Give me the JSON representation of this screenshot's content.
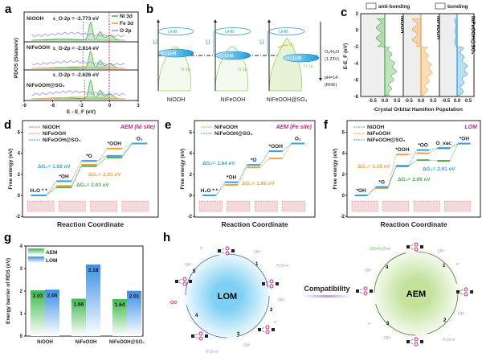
{
  "panel_labels": [
    "a",
    "b",
    "c",
    "d",
    "e",
    "f",
    "g",
    "h"
  ],
  "colors": {
    "NiOOH": "#4db04a",
    "NiFeOOH": "#f0a040",
    "NiFeOOH@SO4": "#3aa0e0",
    "O2p": "#9c8cf0",
    "AEM": "#5cc05a",
    "LOM": "#4a9fe8",
    "magenta": "#d0208a",
    "purple": "#b08ae8"
  },
  "chart_data": [
    {
      "panel": "a",
      "type": "line",
      "xlabel": "E - E_F (eV)",
      "ylabel": "PDOS (State/eV)",
      "xlim": [
        -9,
        3
      ],
      "xticks": [
        "-9",
        "-6",
        "-3",
        "0",
        "3"
      ],
      "legend": [
        "Ni 3d",
        "Fe 3d",
        "O 2p"
      ],
      "subplots": [
        {
          "name": "NiOOH",
          "center_label": "ε_O-2p = -2.773 eV",
          "o2p_center": -2.773
        },
        {
          "name": "NiFeOOH",
          "center_label": "ε_O-2p = -2.814 eV",
          "o2p_center": -2.814
        },
        {
          "name": "NiFeOOH@SO₄",
          "center_label": "ε_O-2p = -2.626 eV",
          "o2p_center": -2.626
        }
      ]
    },
    {
      "panel": "c",
      "type": "area",
      "xlabel": "-Crystal Orbital Hamilton Population",
      "ylabel": "E-E_F (eV)",
      "ylim": [
        -8,
        2
      ],
      "yticks": [
        "2",
        "0",
        "-2",
        "-4",
        "-6",
        "-8"
      ],
      "xlim": [
        -0.75,
        0.75
      ],
      "xticks": [
        "-0.5",
        "0.0",
        "0.5"
      ],
      "legend": [
        "anti-bonding",
        "bonding"
      ],
      "subplots": [
        "NiOOH",
        "NiFeOOH",
        "NiFeOOH@SO₄"
      ]
    },
    {
      "panel": "d",
      "type": "line",
      "title": "AEM (Ni site)",
      "xlabel": "Reaction Coordinate",
      "ylabel": "Free energy (eV)",
      "ylim": [
        -2,
        7
      ],
      "yticks": [
        "-2",
        "0",
        "2",
        "4",
        "6"
      ],
      "steps": [
        "H₂O * *",
        "*OH",
        "*O",
        "*OOH",
        "O₂"
      ],
      "series": [
        {
          "name": "NiOOH",
          "values": [
            0,
            0.75,
            2.78,
            3.6,
            4.92
          ]
        },
        {
          "name": "NiFeOOH",
          "values": [
            0,
            0.9,
            2.91,
            4.45,
            4.92
          ]
        },
        {
          "name": "NiFeOOH@SO₄",
          "values": [
            0,
            1.35,
            3.27,
            3.75,
            4.92
          ]
        }
      ],
      "annotations": [
        {
          "text": "ΔG₂= 1.92 eV",
          "series": "NiFeOOH@SO₄"
        },
        {
          "text": "ΔG₂= 2.01 eV",
          "series": "NiFeOOH"
        },
        {
          "text": "ΔG₂= 2.03 eV",
          "series": "NiOOH"
        }
      ]
    },
    {
      "panel": "e",
      "type": "line",
      "title": "AEM (Fe site)",
      "xlabel": "Reaction Coordinate",
      "ylabel": "Free energy (eV)",
      "ylim": [
        -2,
        7
      ],
      "yticks": [
        "-2",
        "0",
        "2",
        "4",
        "6"
      ],
      "steps": [
        "H₂O * *",
        "*OH",
        "*O",
        "*OOH",
        "O₂"
      ],
      "series": [
        {
          "name": "NiFeOOH",
          "values": [
            0,
            1.0,
            2.66,
            3.5,
            4.92
          ]
        },
        {
          "name": "NiFeOOH@SO₄",
          "values": [
            0,
            1.25,
            2.89,
            4.2,
            4.92
          ]
        }
      ],
      "annotations": [
        {
          "text": "ΔG₂= 1.64 eV",
          "series": "NiFeOOH@SO₄"
        },
        {
          "text": "ΔG₂= 1.66 eV",
          "series": "NiFeOOH"
        }
      ]
    },
    {
      "panel": "f",
      "type": "line",
      "title": "LOM",
      "xlabel": "Reaction Coordinate",
      "ylabel": "Free energy (eV)",
      "ylim": [
        -2,
        7
      ],
      "yticks": [
        "-2",
        "0",
        "2",
        "4",
        "6"
      ],
      "steps": [
        "*OH",
        "*O",
        "*OOH",
        "*OO",
        "O_vac",
        "*OH"
      ],
      "series": [
        {
          "name": "NiOOH",
          "values": [
            0,
            0.7,
            2.76,
            3.35,
            3.28,
            4.92
          ]
        },
        {
          "name": "NiFeOOH",
          "values": [
            0,
            0.7,
            3.88,
            4.0,
            4.45,
            4.92
          ]
        },
        {
          "name": "NiFeOOH@SO₄",
          "values": [
            0,
            0.8,
            2.81,
            4.3,
            4.5,
            4.92
          ]
        }
      ],
      "annotations": [
        {
          "text": "ΔG₂= 3.18 eV",
          "series": "NiFeOOH"
        },
        {
          "text": "ΔG₂= 2.01 eV",
          "series": "NiFeOOH@SO₄"
        },
        {
          "text": "ΔG₂= 2.06 eV",
          "series": "NiOOH"
        }
      ]
    },
    {
      "panel": "g",
      "type": "bar",
      "ylabel": "Energy barrier of RDS (eV)",
      "ylim": [
        0,
        4
      ],
      "yticks": [
        "0",
        "1",
        "2",
        "3",
        "4"
      ],
      "categories": [
        "NiOOH",
        "NiFeOOH",
        "NiFeOOH@SO₄"
      ],
      "series": [
        {
          "name": "AEM",
          "values": [
            2.03,
            1.66,
            1.64
          ]
        },
        {
          "name": "LOM",
          "values": [
            2.06,
            3.18,
            2.01
          ]
        }
      ],
      "legend": "top-left"
    }
  ],
  "panel_b": {
    "columns": [
      "NiOOH",
      "NiFeOOH",
      "NiFeOOH@SO₄"
    ],
    "uhb": "UHB",
    "lhb": "LHB",
    "o2p": "O 2p",
    "u": "U",
    "o2": "O₂",
    "ref_line1": "O₂/H₂O",
    "ref_line2": "(1.23V)",
    "ph_line1": "pH=14",
    "ph_line2": "(RHE)"
  },
  "panel_h": {
    "lom_label": "LOM",
    "aem_label": "AEM",
    "compatibility": "Compatibility",
    "lom_steps": [
      "1",
      "2",
      "3",
      "4",
      "5"
    ],
    "aem_steps": [
      "1",
      "2",
      "3",
      "4"
    ],
    "oh": "OH⁻",
    "e": "e⁻",
    "h2oe": "H₂O+e⁻",
    "oo": "OO",
    "oo_h2oe": "OO+H₂O+e⁻"
  }
}
